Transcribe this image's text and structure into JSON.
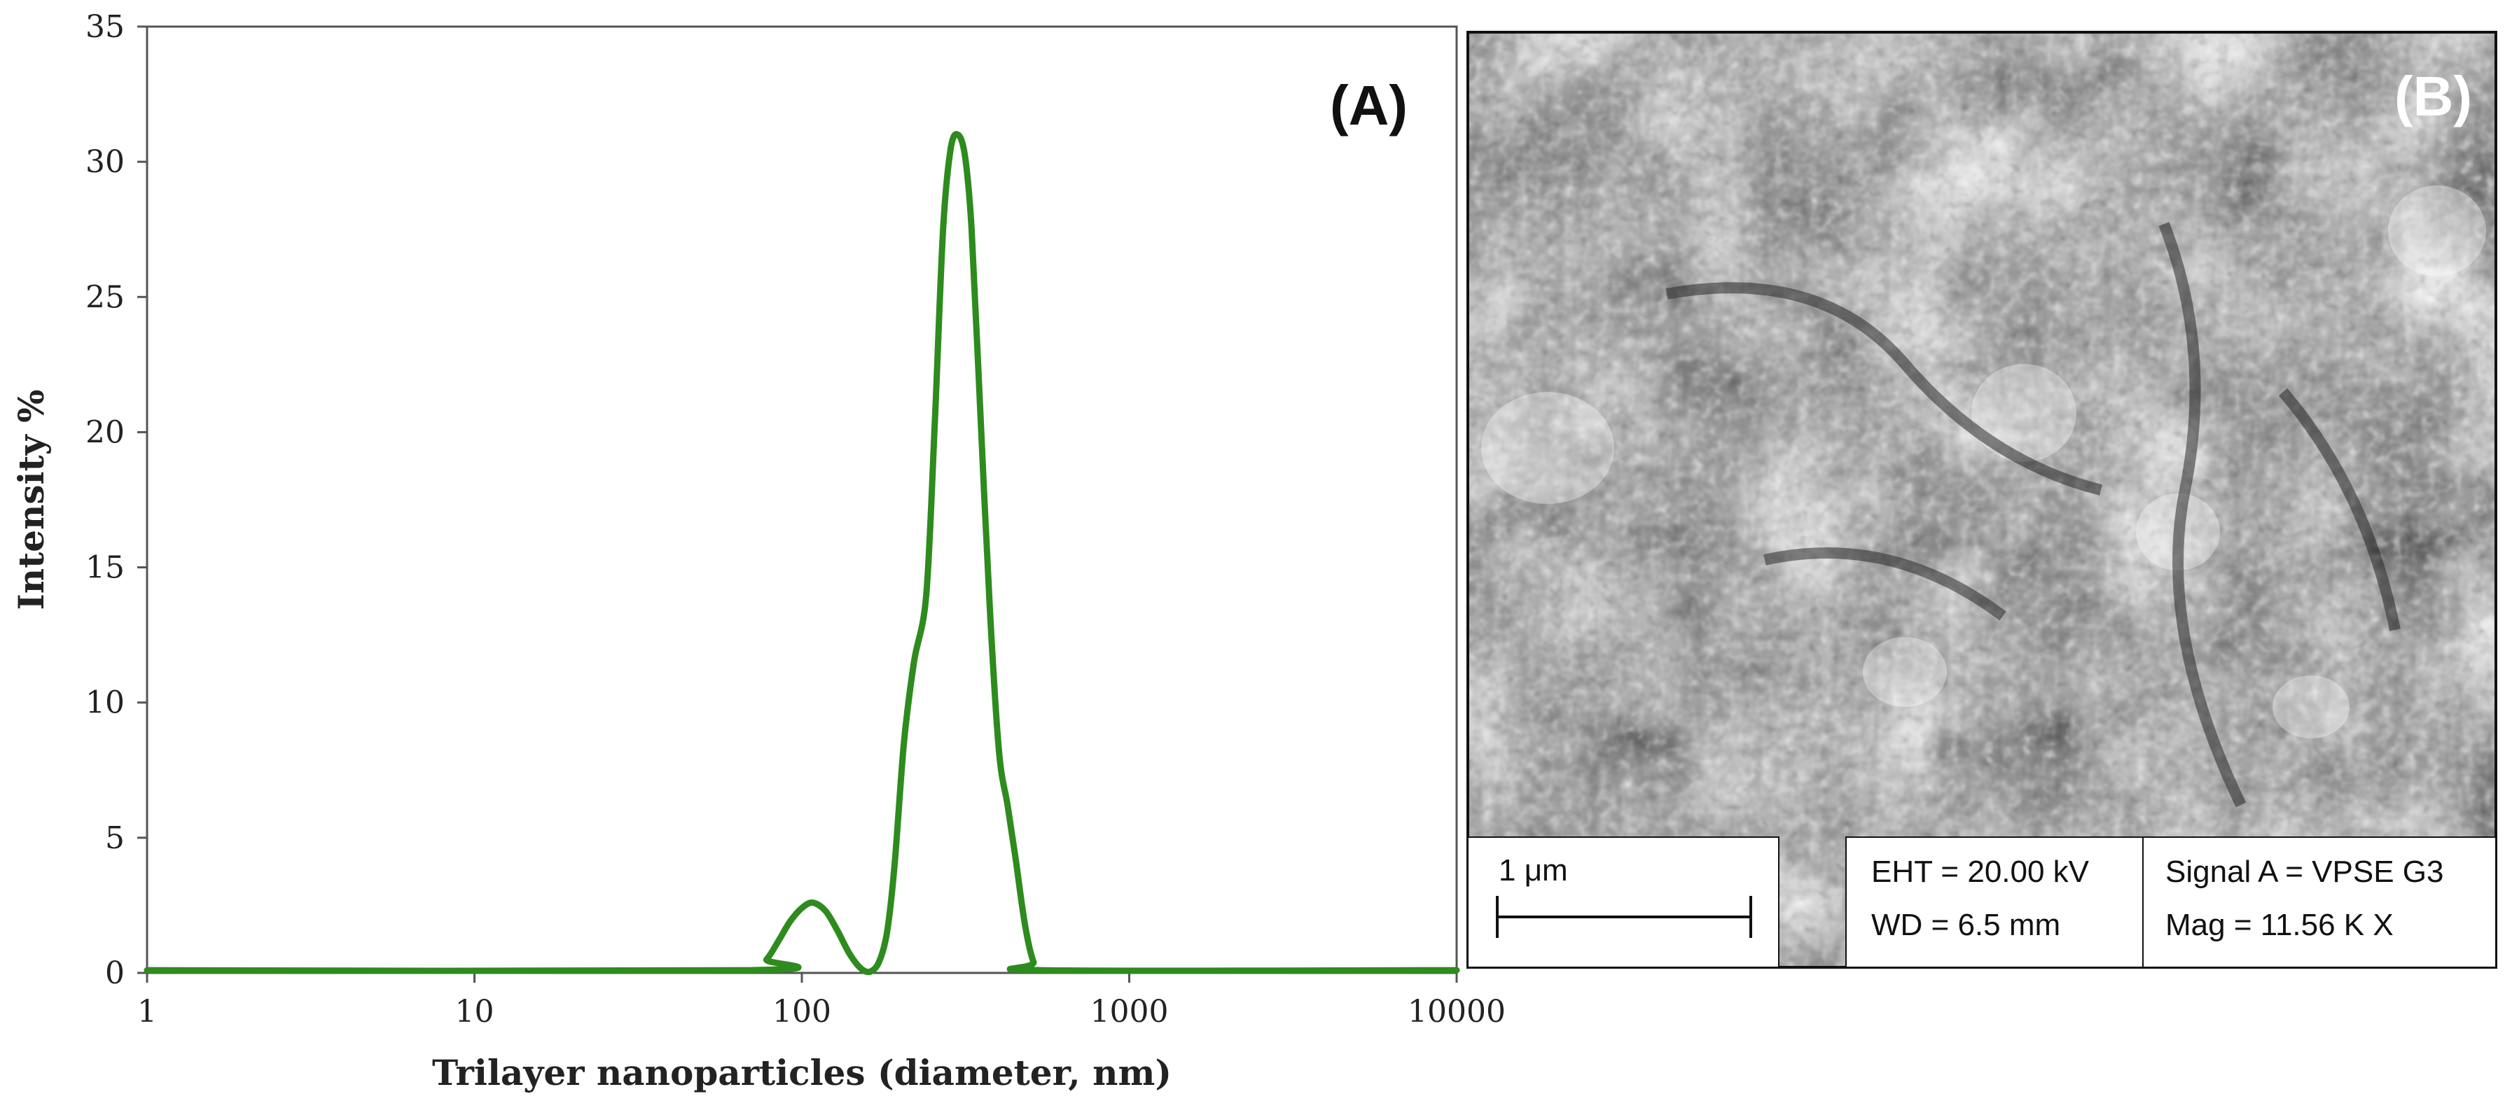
{
  "chart_data": {
    "type": "line",
    "panel_label": "(A)",
    "xlabel": "Trilayer nanoparticles (diameter, nm)",
    "ylabel": "Intensity %",
    "x_scale": "log",
    "xlim": [
      1,
      10000
    ],
    "ylim": [
      0,
      35
    ],
    "x_ticks": [
      1,
      10,
      100,
      1000,
      10000
    ],
    "x_tick_labels": [
      "1",
      "10",
      "100",
      "1000",
      "10000"
    ],
    "y_ticks": [
      0,
      5,
      10,
      15,
      20,
      25,
      30,
      35
    ],
    "y_tick_labels": [
      "0",
      "5",
      "10",
      "15",
      "20",
      "25",
      "30",
      "35"
    ],
    "grid": false,
    "legend": "none",
    "color": "#2e8b1e",
    "series": [
      {
        "x": [
          1,
          70,
          78,
          85,
          92,
          100,
          108,
          118,
          128,
          140,
          152,
          162,
          172,
          182,
          192,
          205,
          220,
          240,
          255,
          270,
          285,
          300,
          315,
          330,
          350,
          375,
          400,
          425,
          450,
          480,
          510,
          540,
          10000
        ],
        "y": [
          0.1,
          0.1,
          0.5,
          1.2,
          1.9,
          2.4,
          2.6,
          2.3,
          1.6,
          0.7,
          0.15,
          0.05,
          0.4,
          1.5,
          4,
          8.5,
          11.5,
          14,
          20.5,
          27.5,
          30.5,
          31.0,
          30.2,
          27.5,
          21.0,
          13.5,
          8.2,
          6.2,
          4.2,
          1.8,
          0.4,
          0.1,
          0.1
        ]
      }
    ]
  },
  "sem_panel": {
    "panel_label": "(B)",
    "scale_bar_label": "1 μm",
    "eht": "EHT = 20.00 kV",
    "wd": "WD =  6.5 mm",
    "signal": "Signal A = VPSE G3",
    "mag": "Mag =    11.56 K X"
  }
}
